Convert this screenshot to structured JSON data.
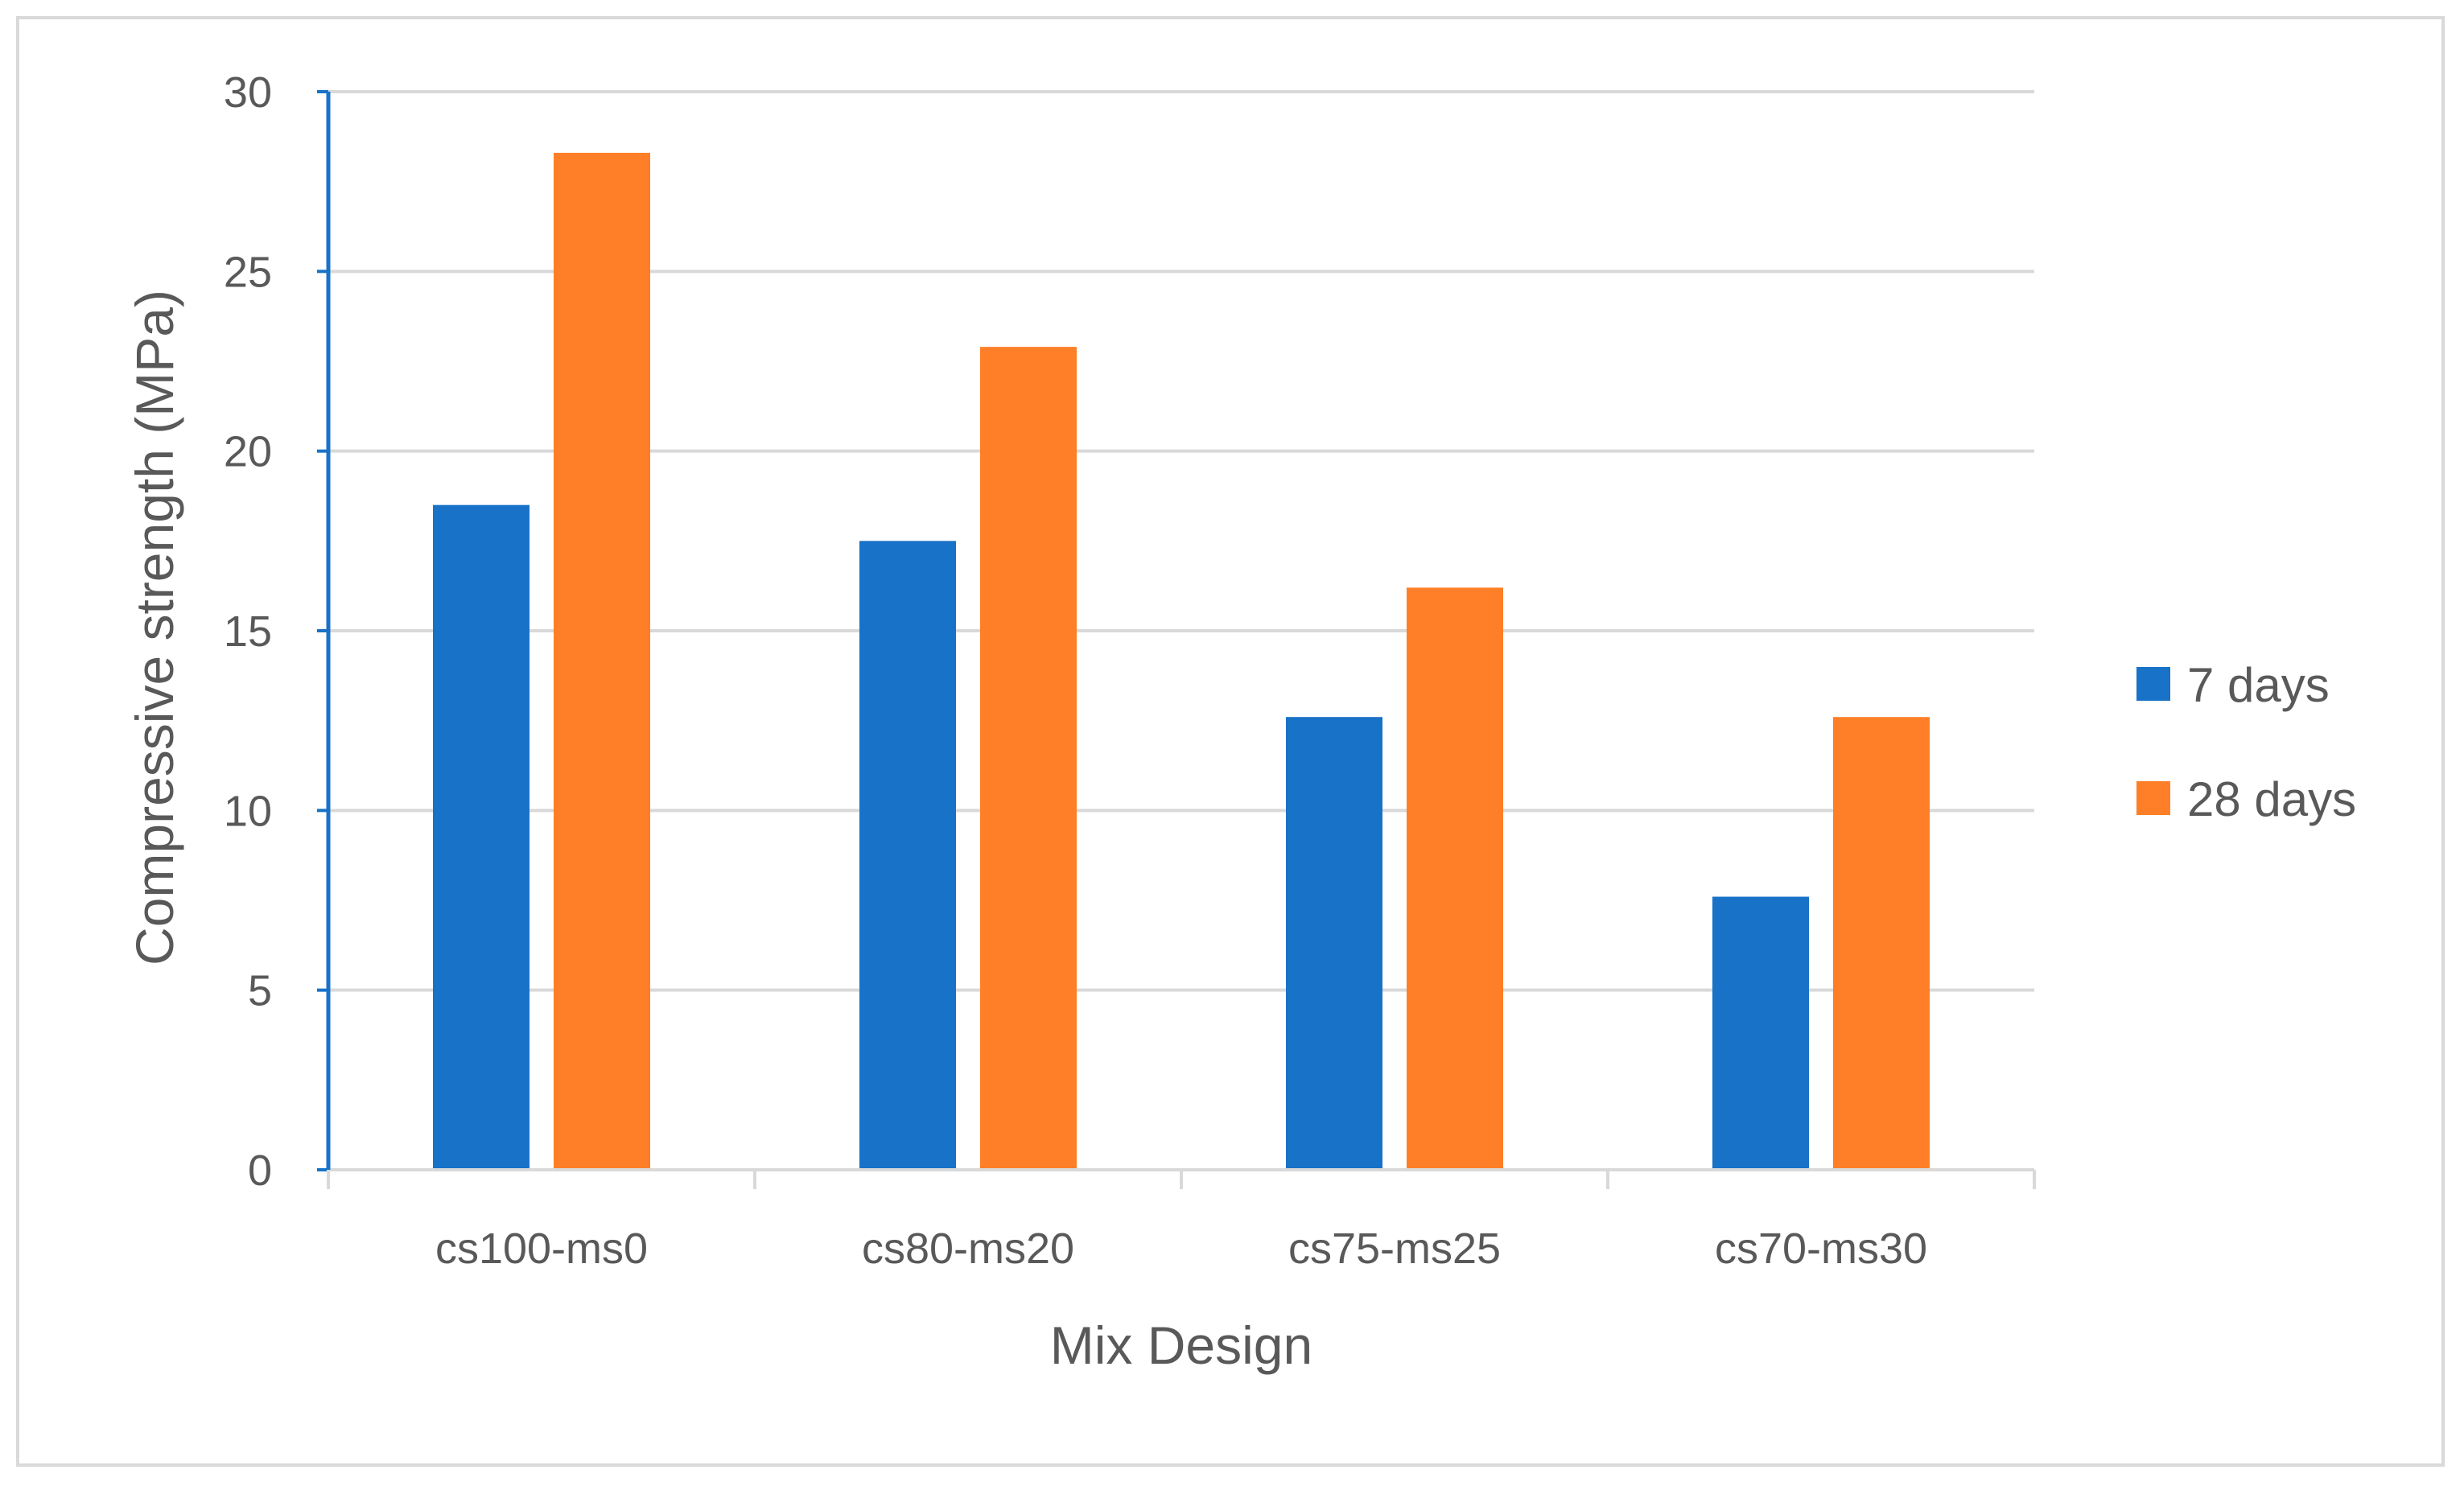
{
  "chart_data": {
    "type": "bar",
    "title": "",
    "xlabel": "Mix Design",
    "ylabel": "Compressive strength (MPa)",
    "categories": [
      "cs100-ms0",
      "cs80-ms20",
      "cs75-ms25",
      "cs70-ms30"
    ],
    "series": [
      {
        "name": "7 days",
        "color": "#1872c8",
        "values": [
          18.5,
          17.5,
          12.6,
          7.6
        ]
      },
      {
        "name": "28 days",
        "color": "#fe7f27",
        "values": [
          28.3,
          22.9,
          16.2,
          12.6
        ]
      }
    ],
    "ylim": [
      0,
      30
    ],
    "yticks": [
      0,
      5,
      10,
      15,
      20,
      25,
      30
    ],
    "grid": true,
    "legend": "right",
    "colors": {
      "grid": "#d9d9d9",
      "y_axis": "#1872c8",
      "x_axis": "#d9d9d9",
      "text": "#595959"
    }
  }
}
